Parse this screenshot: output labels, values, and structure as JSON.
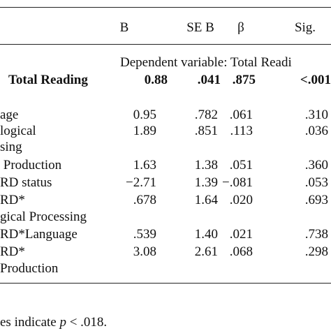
{
  "table": {
    "header": [
      "B",
      "SE B",
      "β",
      "Sig."
    ],
    "subheader": "Dependent variable: Total Readi",
    "rows": [
      {
        "label": "Total Reading",
        "cells": [
          "0.88",
          ".041",
          ".875",
          "<.001"
        ],
        "bold": true
      },
      {
        "label": "age",
        "cells": [
          "0.95",
          ".782",
          ".061",
          ".310"
        ]
      },
      {
        "label": "logical",
        "cells": [
          "1.89",
          ".851",
          ".113",
          ".036"
        ]
      },
      {
        "label": "sing"
      },
      {
        "label": " Production",
        "cells": [
          "1.63",
          "1.38",
          ".051",
          ".360"
        ]
      },
      {
        "label": "RD status",
        "cells": [
          "−2.71",
          "1.39",
          "−.081",
          ".053"
        ]
      },
      {
        "label": "RD*",
        "cells": [
          ".678",
          "1.64",
          ".020",
          ".693"
        ]
      },
      {
        "label": "gical Processing"
      },
      {
        "label": "RD*Language",
        "cells": [
          ".539",
          "1.40",
          ".021",
          ".738"
        ]
      },
      {
        "label": "RD*",
        "cells": [
          "3.08",
          "2.61",
          ".068",
          ".298"
        ]
      },
      {
        "label": "Production"
      }
    ],
    "footnote": {
      "before": "es indicate",
      "italic": "p",
      "after": "< .018."
    }
  }
}
